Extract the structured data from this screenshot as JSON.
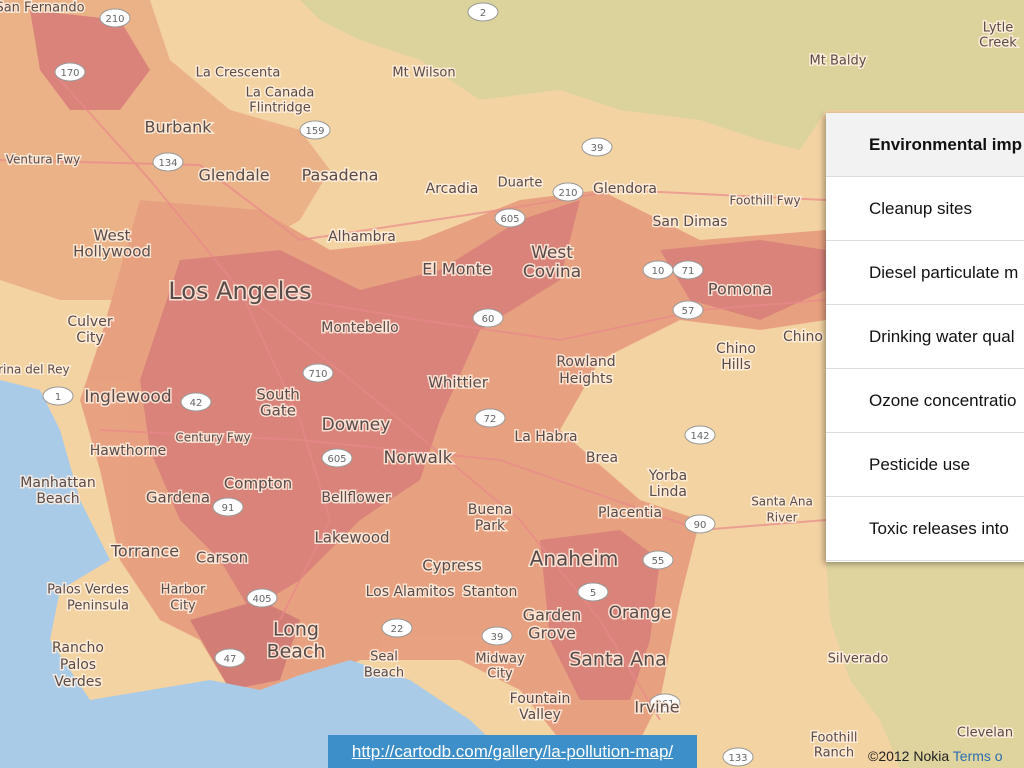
{
  "map": {
    "places": [
      "San Fernando",
      "La Crescenta",
      "Mt Wilson",
      "Mt Baldy",
      "Lytle",
      "Creek",
      "La Canada",
      "Flintridge",
      "Burbank",
      "Glendale",
      "Pasadena",
      "Arcadia",
      "Duarte",
      "Glendora",
      "San Dimas",
      "Foothill Fwy",
      "West",
      "Hollywood",
      "Alhambra",
      "El Monte",
      "West",
      "Covina",
      "Los Angeles",
      "Pomona",
      "Chino",
      "Culver",
      "City",
      "Montebello",
      "Chino",
      "Hills",
      "Rowland",
      "Heights",
      "Marina del Rey",
      "Inglewood",
      "South",
      "Gate",
      "Whittier",
      "Downey",
      "La Habra",
      "Hawthorne",
      "Century Fwy",
      "Norwalk",
      "Brea",
      "Yorba",
      "Linda",
      "Manhattan",
      "Beach",
      "Gardena",
      "Compton",
      "Bellflower",
      "Buena",
      "Park",
      "Placentia",
      "Santa Ana",
      "River",
      "Torrance",
      "Carson",
      "Lakewood",
      "Anaheim",
      "Cypress",
      "Palos Verdes",
      "Peninsula",
      "Harbor",
      "City",
      "Los Alamitos",
      "Stanton",
      "Garden",
      "Grove",
      "Orange",
      "Long",
      "Beach",
      "Rancho",
      "Palos",
      "Verdes",
      "Seal",
      "Beach",
      "Midway",
      "City",
      "Santa Ana",
      "Silverado",
      "Fountain",
      "Valley",
      "Irvine",
      "Foothill",
      "Ranch",
      "Clevelan",
      "Ventura Fwy"
    ],
    "highways": [
      "210",
      "2",
      "170",
      "134",
      "159",
      "39",
      "210",
      "605",
      "60",
      "10",
      "71",
      "57",
      "710",
      "1",
      "42",
      "72",
      "142",
      "605",
      "91",
      "90",
      "405",
      "22",
      "39",
      "47",
      "5",
      "55",
      "261",
      "133"
    ]
  },
  "panel": {
    "title": "Environmental imp",
    "items": [
      "Cleanup sites",
      "Diesel particulate m",
      "Drinking water qual",
      "Ozone concentratio",
      "Pesticide use",
      "Toxic releases into"
    ]
  },
  "link": "http://cartodb.com/gallery/la-pollution-map/",
  "attribution": {
    "copyright": "©2012 Nokia",
    "terms": "Terms o"
  }
}
